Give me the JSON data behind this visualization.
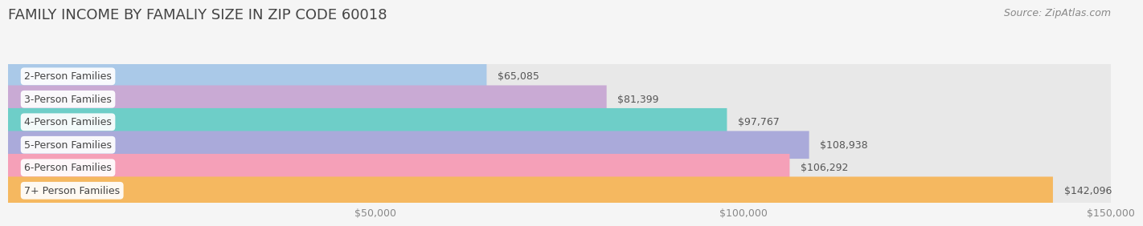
{
  "title": "FAMILY INCOME BY FAMALIY SIZE IN ZIP CODE 60018",
  "source": "Source: ZipAtlas.com",
  "categories": [
    "2-Person Families",
    "3-Person Families",
    "4-Person Families",
    "5-Person Families",
    "6-Person Families",
    "7+ Person Families"
  ],
  "values": [
    65085,
    81399,
    97767,
    108938,
    106292,
    142096
  ],
  "bar_colors": [
    "#aac9e8",
    "#c9aad4",
    "#6ecec8",
    "#aaaada",
    "#f5a0b8",
    "#f5b860"
  ],
  "bar_bg_color": "#e8e8e8",
  "value_labels": [
    "$65,085",
    "$81,399",
    "$97,767",
    "$108,938",
    "$106,292",
    "$142,096"
  ],
  "xlim": [
    0,
    150000
  ],
  "xticks": [
    0,
    50000,
    100000,
    150000
  ],
  "xtick_labels": [
    "",
    "$50,000",
    "$100,000",
    "$150,000"
  ],
  "background_color": "#f5f5f5",
  "title_fontsize": 13,
  "source_fontsize": 9,
  "bar_label_fontsize": 9,
  "value_label_fontsize": 9
}
